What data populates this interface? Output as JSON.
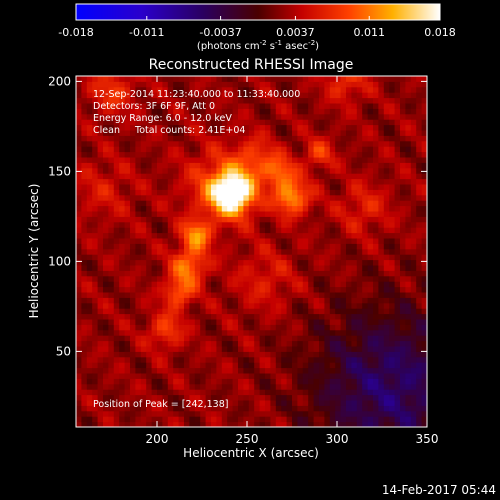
{
  "colorbar": {
    "ticks": [
      "-0.018",
      "-0.011",
      "-0.0037",
      "0.0037",
      "0.011",
      "0.018"
    ],
    "unit_label_parts": [
      "(photons cm",
      "-2",
      " s",
      "-1",
      " asec",
      "-2",
      ")"
    ]
  },
  "chart_data": {
    "type": "heatmap",
    "title": "Reconstructed RHESSI Image",
    "xlabel": "Heliocentric X (arcsec)",
    "ylabel": "Heliocentric Y (arcsec)",
    "xlim": [
      155,
      350
    ],
    "ylim": [
      8,
      203
    ],
    "x_ticks": [
      200,
      250,
      300,
      350
    ],
    "y_ticks": [
      50,
      100,
      150,
      200
    ],
    "colorbar_range": [
      -0.018,
      0.018
    ],
    "colormap": "rhessi-blue-black-red-yellow-white",
    "annotations": [
      "12-Sep-2014 11:23:40.000 to 11:33:40.000",
      "Detectors: 3F 6F 9F, Att 0",
      "Energy Range: 6.0 - 12.0 keV",
      "Clean     Total counts: 2.41E+04"
    ],
    "peak_label": "Position of Peak = [242,138]",
    "peak_position": [
      242,
      138
    ],
    "sources": [
      {
        "x": 242,
        "y": 138,
        "sigma": 8,
        "amp": 0.0175
      },
      {
        "x": 235,
        "y": 143,
        "sigma": 14,
        "amp": 0.006
      },
      {
        "x": 275,
        "y": 136,
        "sigma": 7,
        "amp": 0.01
      },
      {
        "x": 268,
        "y": 150,
        "sigma": 6,
        "amp": 0.007
      },
      {
        "x": 255,
        "y": 158,
        "sigma": 8,
        "amp": 0.005
      },
      {
        "x": 222,
        "y": 115,
        "sigma": 6,
        "amp": 0.009
      },
      {
        "x": 218,
        "y": 98,
        "sigma": 7,
        "amp": 0.0085
      },
      {
        "x": 212,
        "y": 83,
        "sigma": 6,
        "amp": 0.0075
      },
      {
        "x": 205,
        "y": 62,
        "sigma": 7,
        "amp": 0.006
      },
      {
        "x": 290,
        "y": 160,
        "sigma": 6,
        "amp": 0.0055
      },
      {
        "x": 315,
        "y": 130,
        "sigma": 10,
        "amp": 0.004
      },
      {
        "x": 175,
        "y": 195,
        "sigma": 9,
        "amp": 0.005
      },
      {
        "x": 305,
        "y": 200,
        "sigma": 8,
        "amp": 0.005
      },
      {
        "x": 260,
        "y": 90,
        "sigma": 12,
        "amp": 0.0035
      },
      {
        "x": 170,
        "y": 140,
        "sigma": 12,
        "amp": 0.003
      }
    ],
    "background_level": 0.0025,
    "negative_region": {
      "x": 330,
      "y": 30,
      "sigma": 30,
      "amp": -0.008
    }
  },
  "footer": {
    "date": "14-Feb-2017 05:44"
  }
}
